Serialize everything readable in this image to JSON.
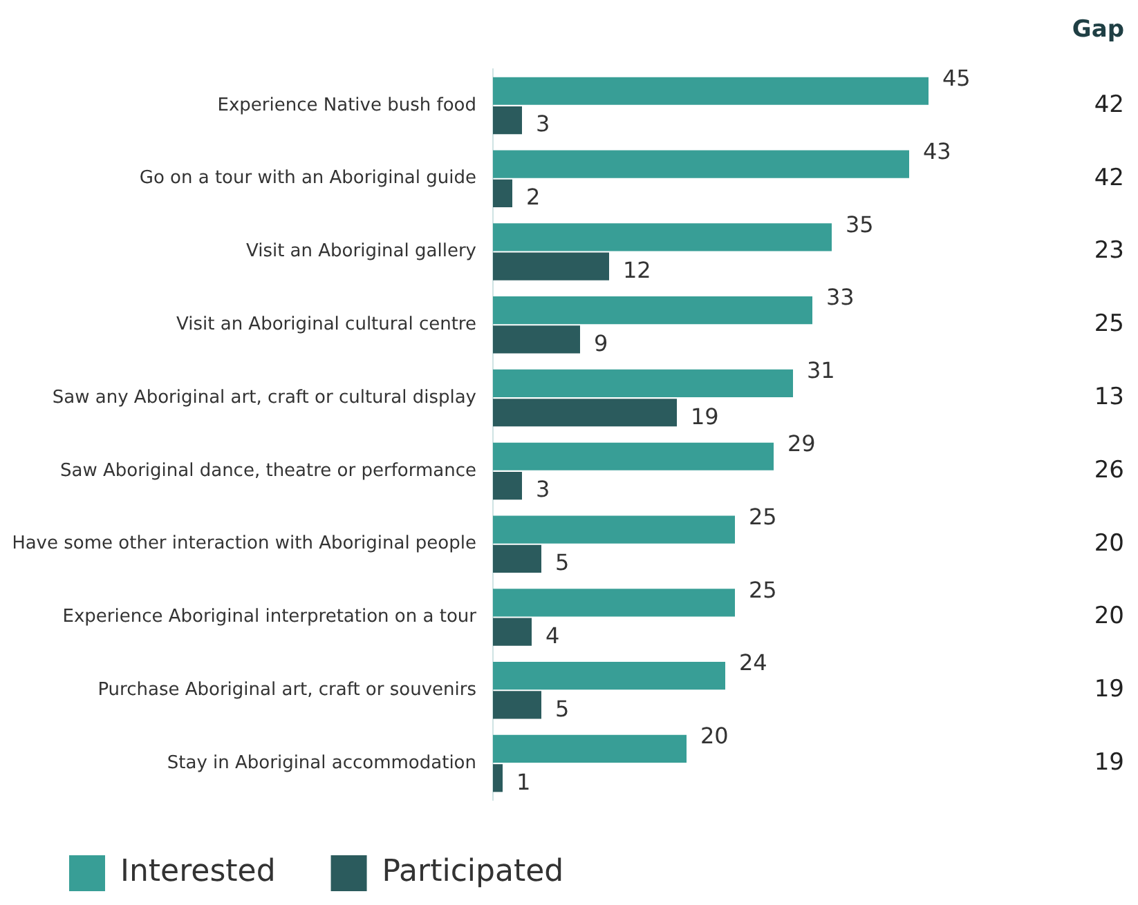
{
  "chart_data": {
    "type": "bar",
    "orientation": "horizontal",
    "categories": [
      "Experience Native bush food",
      "Go on a tour with an Aboriginal guide",
      "Visit an Aboriginal gallery",
      "Visit an Aboriginal cultural centre",
      "Saw any Aboriginal art, craft or cultural display",
      "Saw Aboriginal dance, theatre or performance",
      "Have some other interaction with Aboriginal people",
      "Experience Aboriginal interpretation on a tour",
      "Purchase Aboriginal art, craft or souvenirs",
      "Stay in Aboriginal accommodation"
    ],
    "series": [
      {
        "name": "Interested",
        "color": "#389e96",
        "values": [
          45,
          43,
          35,
          33,
          31,
          29,
          25,
          25,
          24,
          20
        ]
      },
      {
        "name": "Participated",
        "color": "#2b5b5d",
        "values": [
          3,
          2,
          12,
          9,
          19,
          3,
          5,
          4,
          5,
          1
        ]
      }
    ],
    "data_labels": true,
    "grid": false,
    "legend": "bottom left",
    "annotations": [
      "Gap",
      "42",
      "42",
      "23",
      "25",
      "13",
      "26",
      "20",
      "20",
      "19",
      "19"
    ]
  }
}
